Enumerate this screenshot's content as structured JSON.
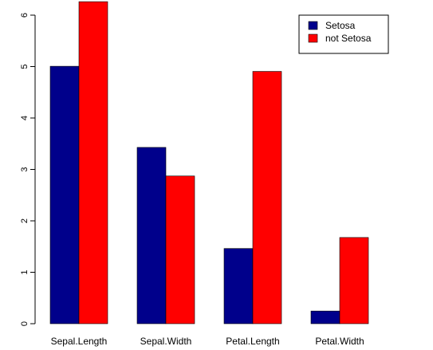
{
  "chart_data": {
    "type": "bar",
    "mode": "grouped",
    "title": "",
    "xlabel": "",
    "ylabel": "",
    "categories": [
      "Sepal.Length",
      "Sepal.Width",
      "Petal.Length",
      "Petal.Width"
    ],
    "series": [
      {
        "name": "Setosa",
        "color": "#00008B",
        "values": [
          5.006,
          3.428,
          1.462,
          0.246
        ]
      },
      {
        "name": "not Setosa",
        "color": "#FF0000",
        "values": [
          6.262,
          2.872,
          4.906,
          1.676
        ]
      }
    ],
    "yticks": [
      0,
      1,
      2,
      3,
      4,
      5,
      6
    ],
    "ytick_labels": [
      "0",
      "1",
      "2",
      "3",
      "4",
      "5",
      "6"
    ],
    "ylim": [
      0,
      6.3
    ],
    "grid": false,
    "legend_position": "top-right"
  }
}
